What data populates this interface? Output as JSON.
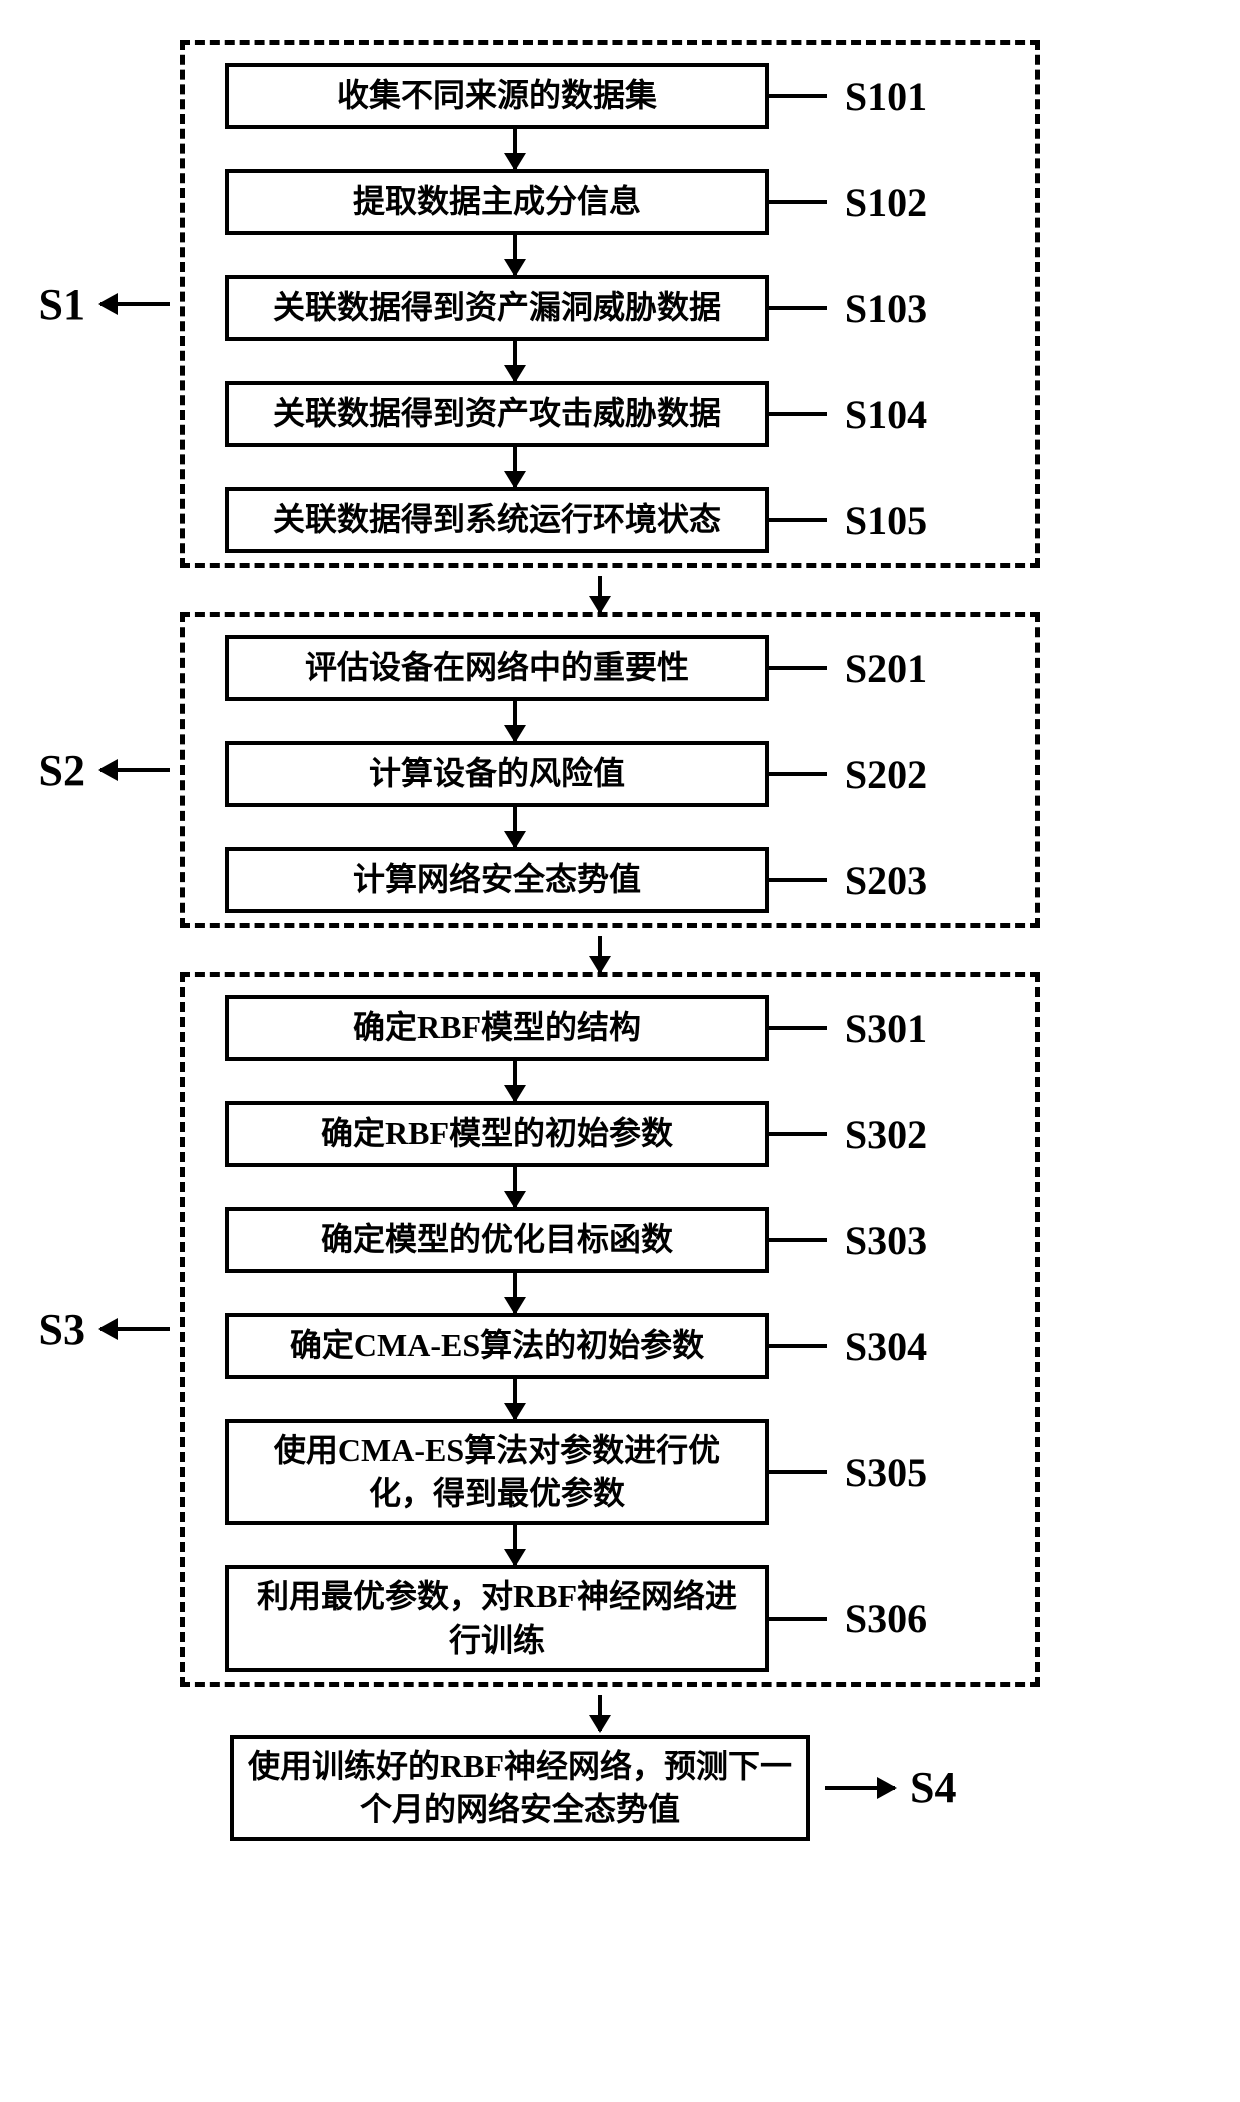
{
  "type": "flowchart",
  "background_color": "#ffffff",
  "border_color": "#000000",
  "text_color": "#000000",
  "box_border_width": 4,
  "dashed_border_width": 5,
  "step_fontsize": 32,
  "tag_fontsize": 40,
  "group_label_fontsize": 44,
  "arrow_head_size": 18,
  "groups": [
    {
      "id": "S1",
      "steps": [
        {
          "tag": "S101",
          "text": "收集不同来源的数据集"
        },
        {
          "tag": "S102",
          "text": "提取数据主成分信息"
        },
        {
          "tag": "S103",
          "text": "关联数据得到资产漏洞威胁数据"
        },
        {
          "tag": "S104",
          "text": "关联数据得到资产攻击威胁数据"
        },
        {
          "tag": "S105",
          "text": "关联数据得到系统运行环境状态"
        }
      ]
    },
    {
      "id": "S2",
      "steps": [
        {
          "tag": "S201",
          "text": "评估设备在网络中的重要性"
        },
        {
          "tag": "S202",
          "text": "计算设备的风险值"
        },
        {
          "tag": "S203",
          "text": "计算网络安全态势值"
        }
      ]
    },
    {
      "id": "S3",
      "steps": [
        {
          "tag": "S301",
          "text": "确定RBF模型的结构"
        },
        {
          "tag": "S302",
          "text": "确定RBF模型的初始参数"
        },
        {
          "tag": "S303",
          "text": "确定模型的优化目标函数"
        },
        {
          "tag": "S304",
          "text": "确定CMA-ES算法的初始参数"
        },
        {
          "tag": "S305",
          "text": "使用CMA-ES算法对参数进行优化，得到最优参数",
          "tall": true
        },
        {
          "tag": "S306",
          "text": "利用最优参数，对RBF神经网络进行训练",
          "tall": true
        }
      ]
    }
  ],
  "final": {
    "id": "S4",
    "text": "使用训练好的RBF神经网络，预测下一个月的网络安全态势值"
  }
}
